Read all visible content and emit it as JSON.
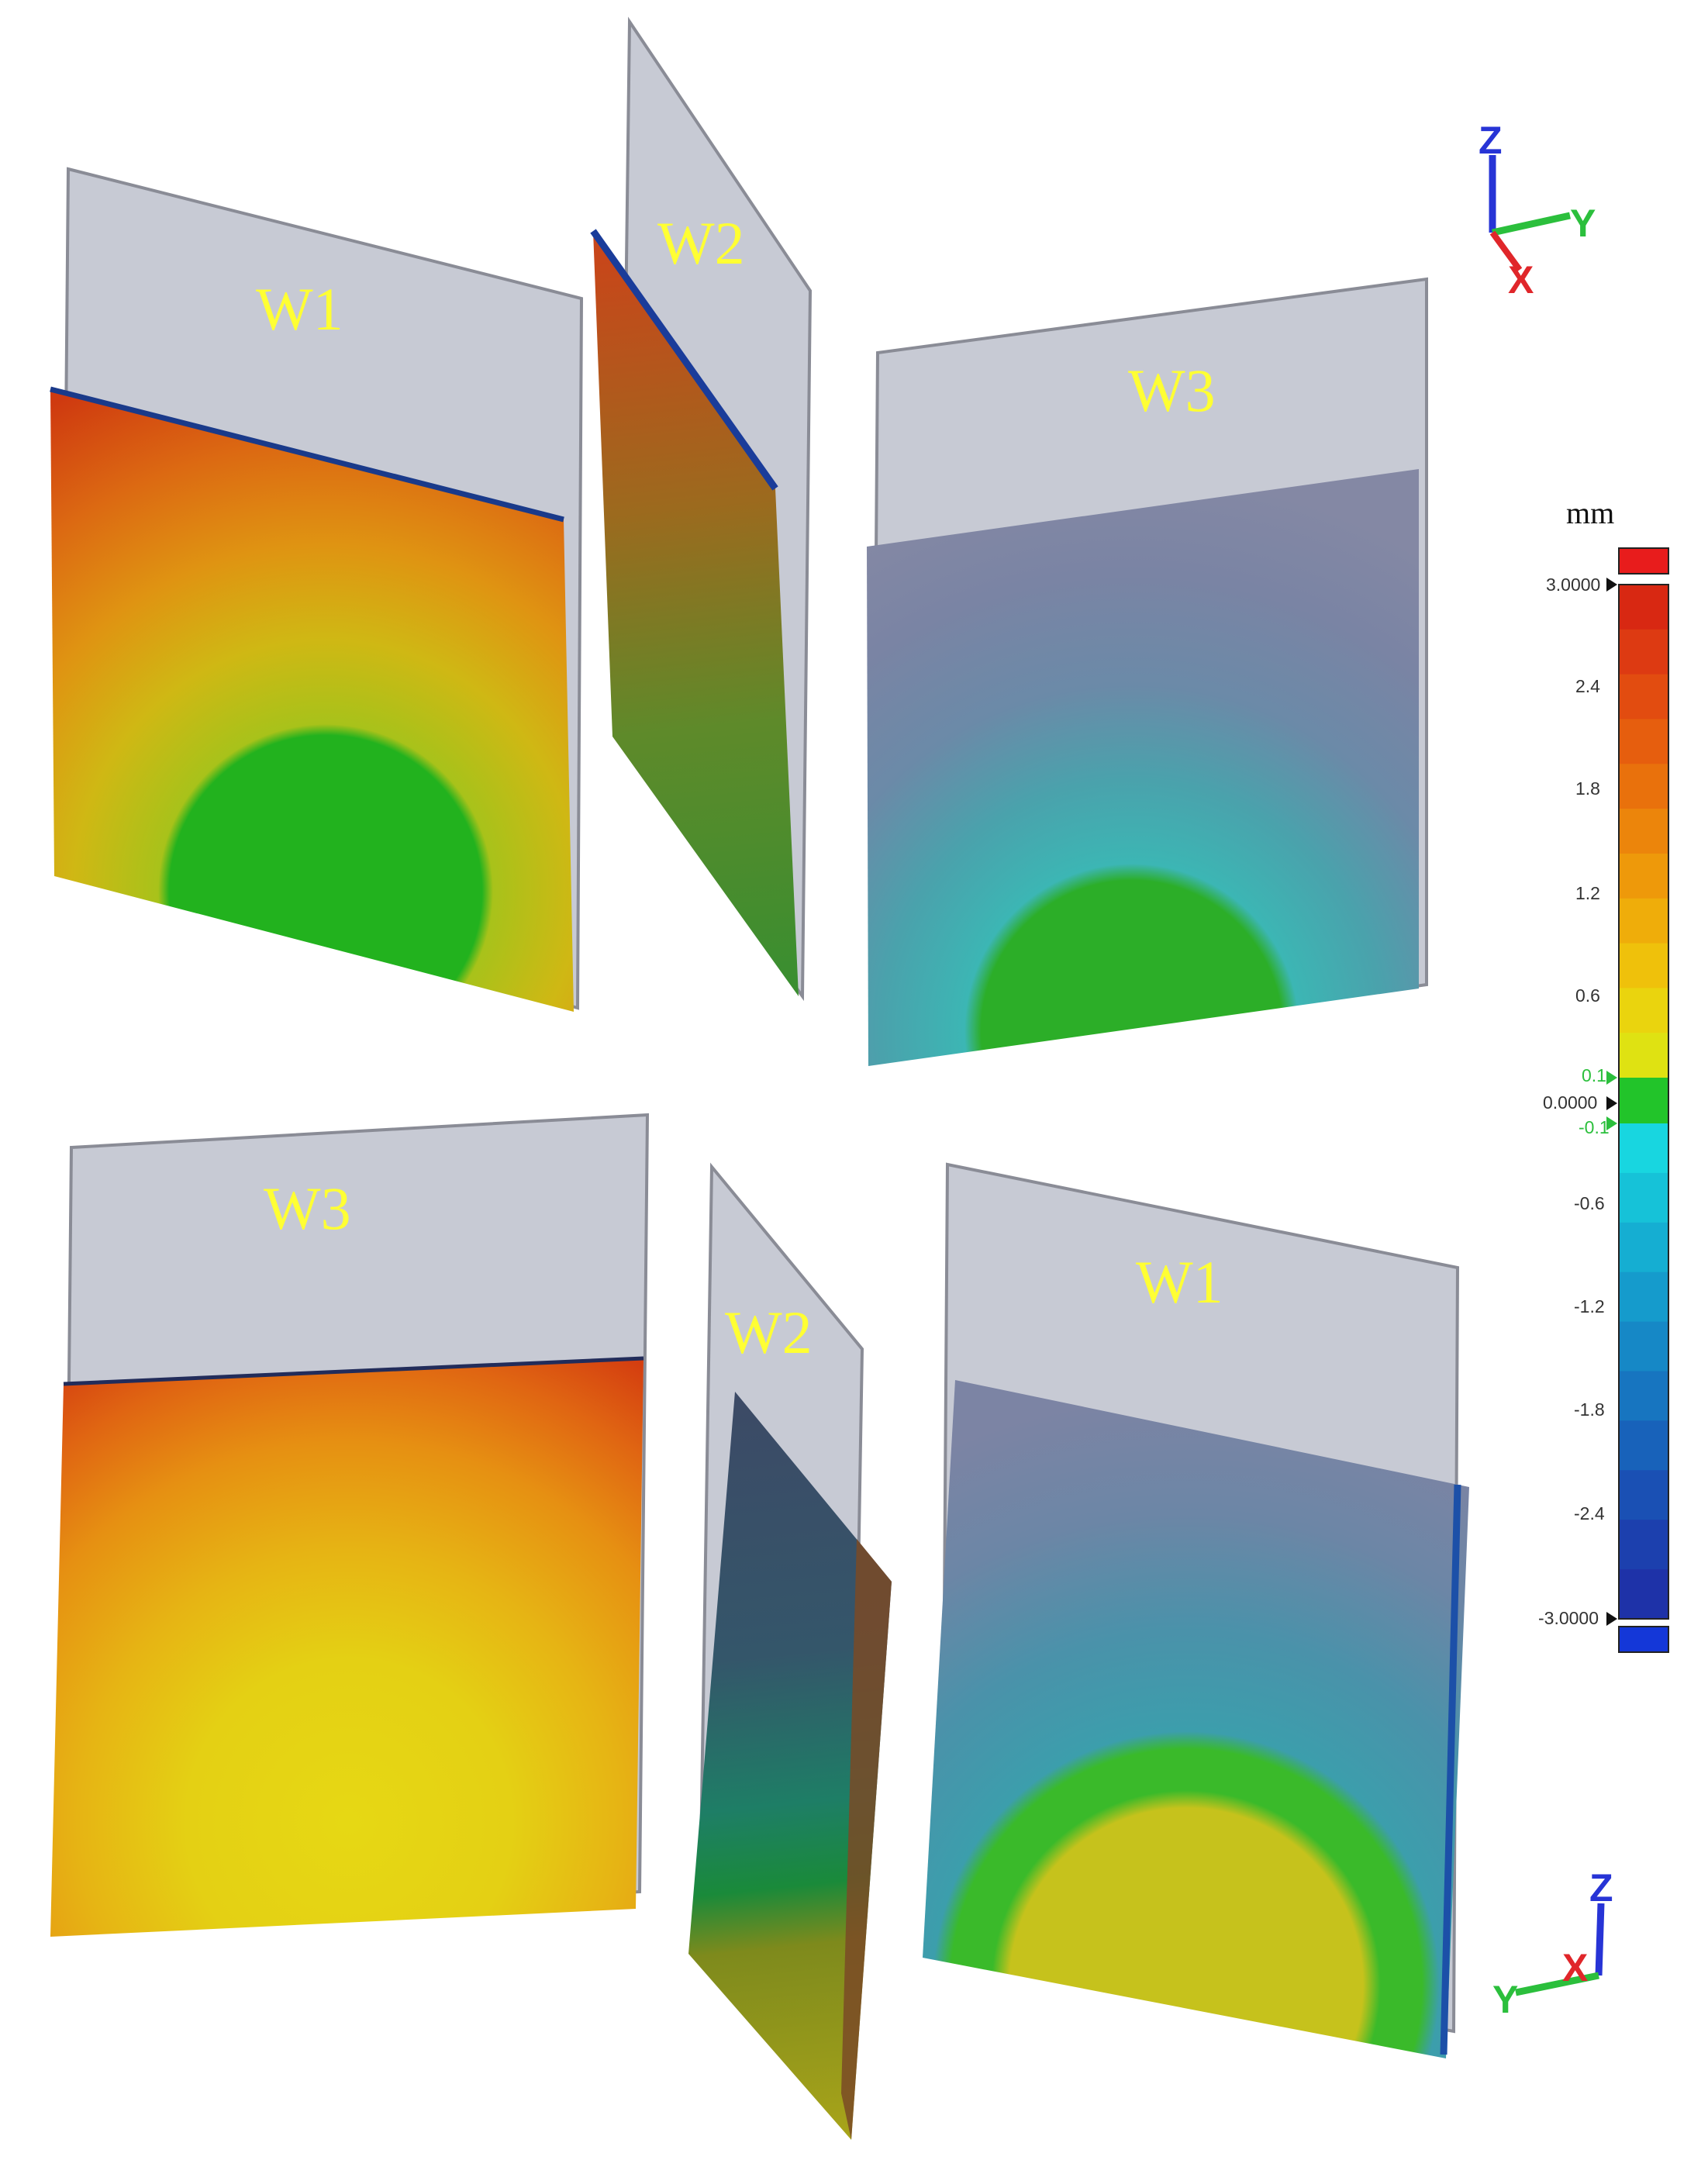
{
  "top_view": {
    "walls": [
      {
        "label": "W1"
      },
      {
        "label": "W2"
      },
      {
        "label": "W3"
      }
    ],
    "axes": {
      "z": "Z",
      "y": "Y",
      "x": "X"
    }
  },
  "bottom_view": {
    "walls": [
      {
        "label": "W3"
      },
      {
        "label": "W2"
      },
      {
        "label": "W1"
      }
    ],
    "axes": {
      "z": "Z",
      "x": "X",
      "y": "Y"
    }
  },
  "color_scale": {
    "unit": "mm",
    "ticks": [
      "3.0000",
      "2.4",
      "1.8",
      "1.2",
      "0.6",
      "0.1",
      "0.0000",
      "-0.1",
      "-0.6",
      "-1.2",
      "-1.8",
      "-2.4",
      "-3.0000"
    ],
    "colors": {
      "positive": [
        "#d82812",
        "#dd3a12",
        "#e24c10",
        "#e65e0e",
        "#e9710c",
        "#ec850b",
        "#ee990a",
        "#efad0a",
        "#efc10b",
        "#ead40e",
        "#dfe212"
      ],
      "neutral": "#22c42a",
      "negative": [
        "#18d6e0",
        "#16c2d8",
        "#15aed2",
        "#159bcc",
        "#1688c6",
        "#1775c0",
        "#1862ba",
        "#1a50b4",
        "#1c40ae",
        "#1e32a8"
      ],
      "over": "#e81c1c",
      "under": "#1437d8"
    }
  },
  "colors": {
    "plate": "#c4c7d2",
    "plate_edge": "#8a8c96",
    "label": "#ffff33",
    "axis_x": "#e0262a",
    "axis_y": "#2bbf3c",
    "axis_z": "#2734d6"
  }
}
